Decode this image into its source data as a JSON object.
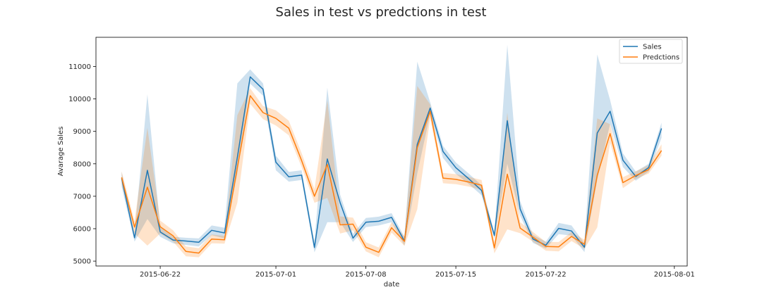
{
  "chart_data": {
    "type": "line",
    "title": "Sales in test vs predctions in test",
    "xlabel": "date",
    "ylabel": "Avarage Sales",
    "ylim": [
      4850,
      11900
    ],
    "y_ticks": [
      5000,
      6000,
      7000,
      8000,
      9000,
      10000,
      11000
    ],
    "x_range": [
      "2015-06-17",
      "2015-08-02"
    ],
    "x_ticks": [
      "2015-06-22",
      "2015-07-01",
      "2015-07-08",
      "2015-07-15",
      "2015-07-22",
      "2015-08-01"
    ],
    "grid": false,
    "legend_position": "top-right",
    "x": [
      "2015-06-19",
      "2015-06-20",
      "2015-06-21",
      "2015-06-22",
      "2015-06-23",
      "2015-06-24",
      "2015-06-25",
      "2015-06-26",
      "2015-06-27",
      "2015-06-28",
      "2015-06-29",
      "2015-06-30",
      "2015-07-01",
      "2015-07-02",
      "2015-07-03",
      "2015-07-04",
      "2015-07-05",
      "2015-07-06",
      "2015-07-07",
      "2015-07-08",
      "2015-07-09",
      "2015-07-10",
      "2015-07-11",
      "2015-07-12",
      "2015-07-13",
      "2015-07-14",
      "2015-07-15",
      "2015-07-16",
      "2015-07-17",
      "2015-07-18",
      "2015-07-19",
      "2015-07-20",
      "2015-07-21",
      "2015-07-22",
      "2015-07-23",
      "2015-07-24",
      "2015-07-25",
      "2015-07-26",
      "2015-07-27",
      "2015-07-28",
      "2015-07-29",
      "2015-07-30",
      "2015-07-31"
    ],
    "series": [
      {
        "name": "Sales",
        "color": "#1f77b4",
        "values": [
          7550,
          5720,
          7800,
          5900,
          5650,
          5620,
          5580,
          5950,
          5870,
          8200,
          10680,
          10300,
          8050,
          7600,
          7650,
          5420,
          8150,
          6800,
          5710,
          6200,
          6230,
          6350,
          5620,
          8600,
          9720,
          8380,
          7880,
          7540,
          7180,
          5790,
          9330,
          6610,
          5680,
          5490,
          6010,
          5930,
          5430,
          8950,
          9620,
          8110,
          7610,
          7880,
          9090
        ],
        "band_low": [
          7300,
          5600,
          6300,
          5750,
          5550,
          5500,
          5450,
          5800,
          5700,
          7700,
          10470,
          10100,
          7800,
          7450,
          7500,
          5270,
          6200,
          6200,
          5590,
          6050,
          6100,
          6200,
          5480,
          7700,
          9530,
          8180,
          7690,
          7380,
          7030,
          5700,
          8000,
          6400,
          5560,
          5390,
          5830,
          5790,
          5280,
          7500,
          9230,
          7900,
          7480,
          7760,
          8800
        ],
        "band_high": [
          7750,
          5860,
          10140,
          6050,
          5750,
          5720,
          5700,
          6100,
          6030,
          10480,
          10910,
          10480,
          8250,
          7750,
          7800,
          5600,
          10350,
          7050,
          5840,
          6330,
          6370,
          6480,
          5750,
          11150,
          9900,
          8550,
          8040,
          7700,
          7340,
          5890,
          11670,
          6850,
          5810,
          5600,
          6180,
          6100,
          5550,
          11370,
          9970,
          8320,
          7760,
          8000,
          9270
        ]
      },
      {
        "name": "Predctions",
        "color": "#ff7f0e",
        "values": [
          7580,
          6050,
          7280,
          6060,
          5780,
          5300,
          5250,
          5680,
          5660,
          7880,
          10100,
          9580,
          9400,
          9100,
          8100,
          7000,
          7980,
          6120,
          6140,
          5430,
          5270,
          6030,
          5610,
          8500,
          9620,
          7560,
          7520,
          7440,
          7340,
          5410,
          7680,
          6020,
          5740,
          5450,
          5440,
          5760,
          5520,
          7650,
          8930,
          7420,
          7640,
          7820,
          8410
        ],
        "band_low": [
          7400,
          5850,
          5480,
          5850,
          5600,
          5150,
          5120,
          5550,
          5540,
          6800,
          9850,
          9380,
          9180,
          8880,
          7900,
          6800,
          6950,
          5850,
          5950,
          5300,
          5120,
          5880,
          5470,
          6600,
          9400,
          7400,
          7370,
          7300,
          7200,
          5240,
          5980,
          5860,
          5600,
          5320,
          5300,
          5620,
          5380,
          6040,
          8650,
          7250,
          7530,
          7700,
          8250
        ],
        "band_high": [
          7770,
          6230,
          9110,
          6250,
          5950,
          5450,
          5400,
          5820,
          5780,
          9500,
          10330,
          9780,
          9650,
          9330,
          8330,
          7220,
          9960,
          6380,
          6340,
          5580,
          5420,
          6200,
          5770,
          10400,
          9830,
          7720,
          7680,
          7600,
          7500,
          5580,
          9580,
          6200,
          5900,
          5590,
          5590,
          5900,
          5660,
          9400,
          9220,
          7590,
          7770,
          7960,
          8600
        ]
      }
    ]
  }
}
